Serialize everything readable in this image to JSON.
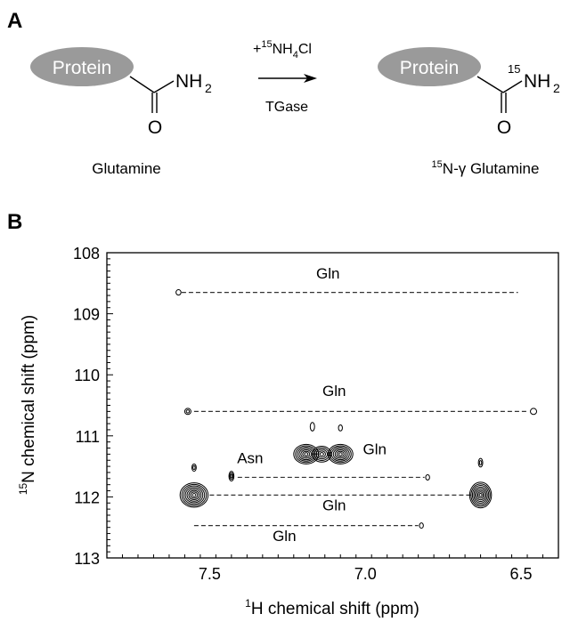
{
  "panel_a": {
    "label": "A",
    "reactant": {
      "protein_label": "Protein",
      "carbonyl_o": "O",
      "amine_n": "NH",
      "amine_sub": "2",
      "name": "Glutamine"
    },
    "arrow": {
      "reagent_prefix": "+",
      "reagent_isotope": "15",
      "reagent_main": "NH",
      "reagent_sub": "4",
      "reagent_suffix": "Cl",
      "enzyme": "TGase"
    },
    "product": {
      "protein_label": "Protein",
      "carbonyl_o": "O",
      "isotope": "15",
      "amine_n": "NH",
      "amine_sub": "2",
      "name_isotope": "15",
      "name_main": "N-γ Glutamine"
    },
    "colors": {
      "protein_fill": "#9a9a9a",
      "protein_text": "#ffffff"
    }
  },
  "panel_b": {
    "label": "B"
  },
  "chart_data": {
    "type": "scatter",
    "x_axis": {
      "label_isotope": "1",
      "label_main": "H chemical shift (ppm)",
      "range": [
        7.83,
        6.38
      ],
      "reversed": true,
      "ticks": [
        7.5,
        7.0,
        6.5
      ],
      "tick_labels": [
        "7.5",
        "7.0",
        "6.5"
      ]
    },
    "y_axis": {
      "label_isotope": "15",
      "label_main": "N chemical shift (ppm)",
      "range": [
        108.0,
        113.0
      ],
      "reversed": true,
      "ticks": [
        108,
        109,
        110,
        111,
        112,
        113
      ],
      "tick_labels": [
        "108",
        "109",
        "110",
        "111",
        "112",
        "113"
      ]
    },
    "grid": false,
    "peaks": [
      {
        "x": 7.6,
        "y": 108.65,
        "w": 0.008,
        "h": 0.045,
        "rings": 1
      },
      {
        "x": 7.57,
        "y": 110.6,
        "w": 0.01,
        "h": 0.05,
        "rings": 2
      },
      {
        "x": 6.46,
        "y": 110.6,
        "w": 0.01,
        "h": 0.05,
        "rings": 1
      },
      {
        "x": 7.17,
        "y": 110.85,
        "w": 0.007,
        "h": 0.07,
        "rings": 1
      },
      {
        "x": 7.08,
        "y": 110.87,
        "w": 0.006,
        "h": 0.05,
        "rings": 1
      },
      {
        "x": 7.19,
        "y": 111.3,
        "w": 0.04,
        "h": 0.16,
        "rings": 7
      },
      {
        "x": 7.14,
        "y": 111.3,
        "w": 0.03,
        "h": 0.13,
        "rings": 5
      },
      {
        "x": 7.08,
        "y": 111.3,
        "w": 0.04,
        "h": 0.16,
        "rings": 7
      },
      {
        "x": 7.55,
        "y": 111.52,
        "w": 0.007,
        "h": 0.06,
        "rings": 2
      },
      {
        "x": 7.43,
        "y": 111.66,
        "w": 0.008,
        "h": 0.08,
        "rings": 3
      },
      {
        "x": 6.8,
        "y": 111.68,
        "w": 0.006,
        "h": 0.04,
        "rings": 1
      },
      {
        "x": 6.63,
        "y": 111.44,
        "w": 0.007,
        "h": 0.07,
        "rings": 2
      },
      {
        "x": 7.55,
        "y": 111.97,
        "w": 0.045,
        "h": 0.2,
        "rings": 8
      },
      {
        "x": 6.63,
        "y": 111.97,
        "w": 0.035,
        "h": 0.21,
        "rings": 8
      },
      {
        "x": 6.82,
        "y": 112.47,
        "w": 0.006,
        "h": 0.03,
        "rings": 1
      }
    ],
    "pair_lines": [
      {
        "x1": 7.59,
        "x2": 6.51,
        "y": 108.65
      },
      {
        "x1": 7.55,
        "x2": 6.48,
        "y": 110.6
      },
      {
        "x1": 7.41,
        "x2": 6.81,
        "y": 111.68
      },
      {
        "x1": 7.5,
        "x2": 6.66,
        "y": 111.97
      },
      {
        "x1": 7.55,
        "x2": 6.83,
        "y": 112.47
      }
    ],
    "annotations": [
      {
        "text": "Gln",
        "x": 7.12,
        "y": 108.42
      },
      {
        "text": "Gln",
        "x": 7.1,
        "y": 110.35
      },
      {
        "text": "Gln",
        "x": 6.97,
        "y": 111.3
      },
      {
        "text": "Asn",
        "x": 7.37,
        "y": 111.45
      },
      {
        "text": "Gln",
        "x": 7.1,
        "y": 112.22
      },
      {
        "text": "Gln",
        "x": 7.26,
        "y": 112.72
      }
    ]
  }
}
